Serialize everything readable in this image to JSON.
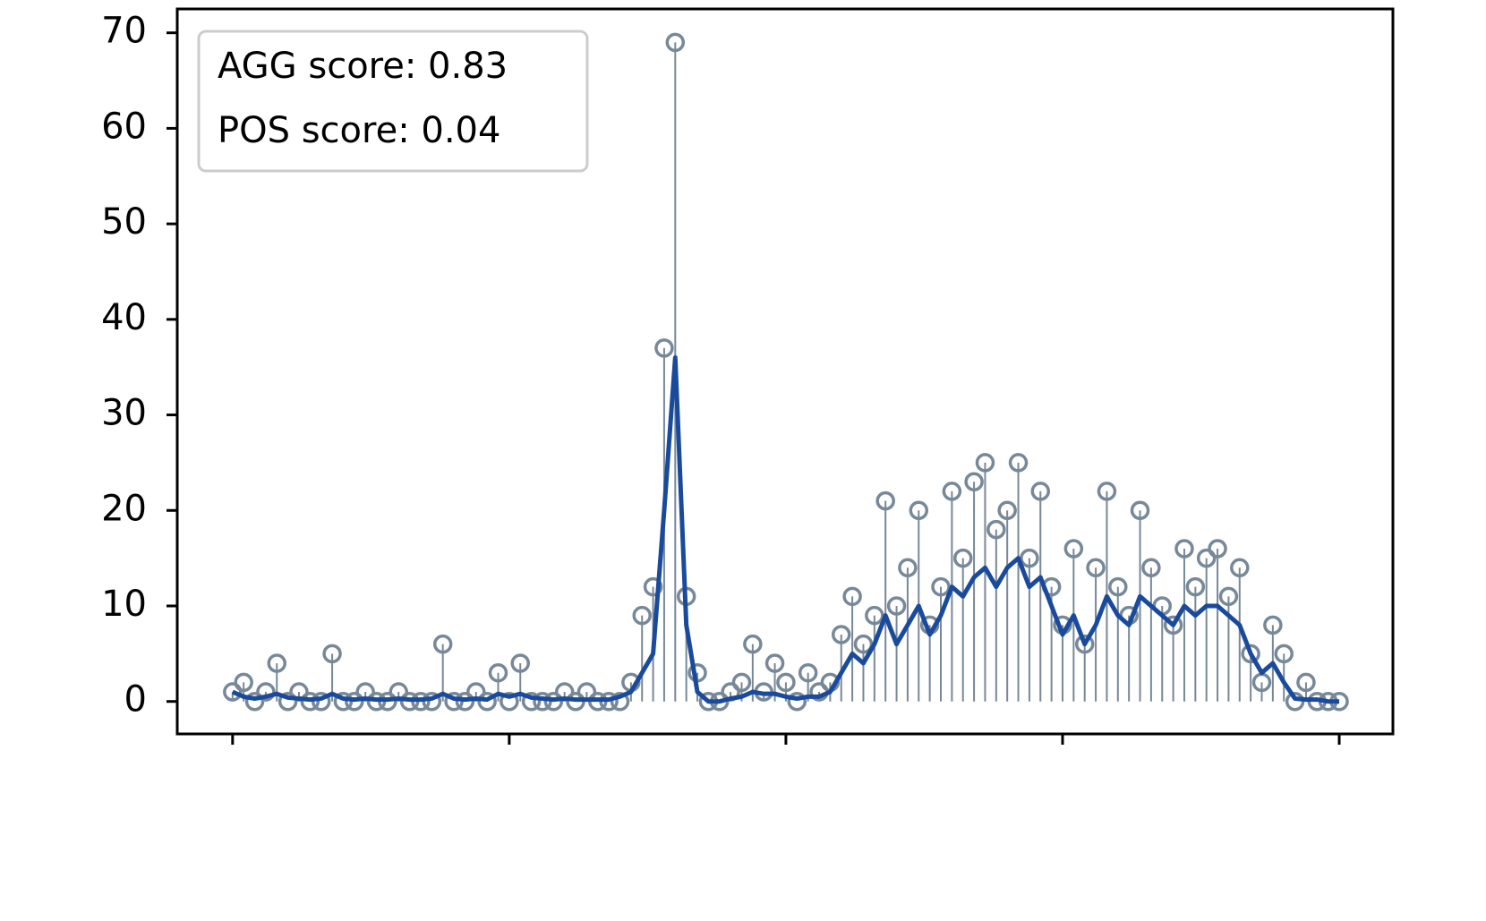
{
  "chart_data": {
    "type": "stem",
    "annotations": [
      "AGG score: 0.83",
      "POS score: 0.04"
    ],
    "x": [
      0,
      4,
      8,
      12,
      16,
      20,
      24,
      28,
      32,
      36,
      40,
      44,
      48,
      52,
      56,
      60,
      64,
      68,
      72,
      76,
      80,
      84,
      88,
      92,
      96,
      100,
      104,
      108,
      112,
      116,
      120,
      124,
      128,
      132,
      136,
      140,
      144,
      148,
      152,
      156,
      160,
      164,
      168,
      172,
      176,
      180,
      184,
      188,
      192,
      196,
      200,
      204,
      208,
      212,
      216,
      220,
      224,
      228,
      232,
      236,
      240,
      244,
      248,
      252,
      256,
      260,
      264,
      268,
      272,
      276,
      280,
      284,
      288,
      292,
      296,
      300,
      304,
      308,
      312,
      316,
      320,
      324,
      328,
      332,
      336,
      340,
      344,
      348,
      352,
      356,
      360,
      364,
      368,
      372,
      376,
      380,
      384,
      388,
      392,
      396,
      400
    ],
    "series": [
      {
        "style": "stem",
        "color": "#778899",
        "values": [
          1,
          2,
          0,
          1,
          4,
          0,
          1,
          0,
          0,
          5,
          0,
          0,
          1,
          0,
          0,
          1,
          0,
          0,
          0,
          6,
          0,
          0,
          1,
          0,
          3,
          0,
          4,
          0,
          0,
          0,
          1,
          0,
          1,
          0,
          0,
          0,
          2,
          9,
          12,
          37,
          69,
          11,
          3,
          0,
          0,
          1,
          2,
          6,
          1,
          4,
          2,
          0,
          3,
          1,
          2,
          7,
          11,
          6,
          9,
          21,
          10,
          14,
          20,
          8,
          12,
          22,
          15,
          23,
          25,
          18,
          20,
          25,
          15,
          22,
          12,
          8,
          16,
          6,
          14,
          22,
          12,
          9,
          20,
          14,
          10,
          8,
          16,
          12,
          15,
          16,
          11,
          14,
          5,
          2,
          8,
          5,
          0,
          2,
          0,
          0,
          0
        ]
      },
      {
        "style": "line",
        "color": "#1a4a9c",
        "values": [
          1,
          0.5,
          0.3,
          0.5,
          0.8,
          0.4,
          0.3,
          0.2,
          0.3,
          0.8,
          0.3,
          0.2,
          0.3,
          0.2,
          0.2,
          0.3,
          0.2,
          0.2,
          0.3,
          0.8,
          0.3,
          0.2,
          0.3,
          0.2,
          0.8,
          0.5,
          0.8,
          0.4,
          0.3,
          0.2,
          0.3,
          0.2,
          0.2,
          0.2,
          0.2,
          0.5,
          1,
          3,
          5,
          20,
          36,
          8,
          1,
          0,
          0,
          0.3,
          0.5,
          1,
          0.8,
          0.8,
          0.5,
          0.3,
          0.5,
          0.5,
          1,
          3,
          5,
          4,
          6,
          9,
          6,
          8,
          10,
          7,
          9,
          12,
          11,
          13,
          14,
          12,
          14,
          15,
          12,
          13,
          10,
          7,
          9,
          6,
          8,
          11,
          9,
          8,
          11,
          10,
          9,
          8,
          10,
          9,
          10,
          10,
          9,
          8,
          5,
          3,
          4,
          2,
          0.3,
          0.2,
          0.2,
          0,
          0
        ]
      }
    ],
    "xlim": [
      -20,
      419.4
    ],
    "xticks": [
      0,
      100,
      200,
      300,
      400
    ],
    "ylim": [
      -3.4,
      72.5
    ],
    "yticks": [
      0,
      10,
      20,
      30,
      40,
      50,
      60,
      70
    ]
  }
}
